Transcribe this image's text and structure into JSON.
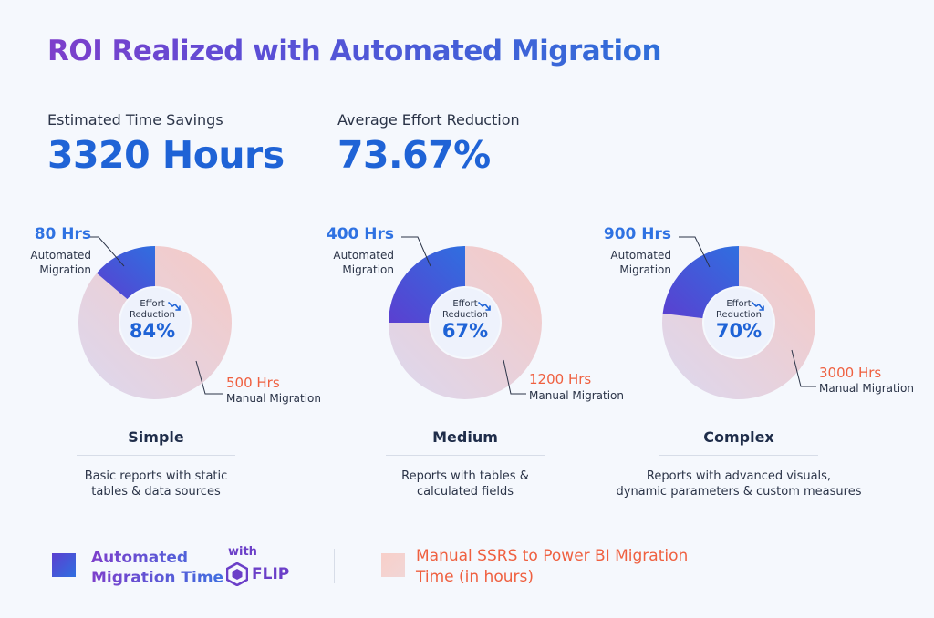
{
  "title": "ROI Realized with Automated Migration",
  "kpis": {
    "time_savings_label": "Estimated Time Savings",
    "time_savings_value": "3320 Hours",
    "effort_label": "Average Effort Reduction",
    "effort_value": "73.67%"
  },
  "colors": {
    "automated_dark": "#3a5fdc",
    "automated_light": "#5b3fd0",
    "manual_pink": "#f6c9c4",
    "manual_lavender": "#dfd9ef",
    "accent_blue": "#1f63d6",
    "accent_orange": "#ef6040"
  },
  "chart_data": [
    {
      "type": "pie",
      "category": "Simple",
      "description_line1": "Basic reports with static",
      "description_line2": "tables & data sources",
      "slices": [
        {
          "name": "Automated Migration",
          "hours_label": "80 Hrs",
          "value": 80
        },
        {
          "name": "Manual Migration",
          "hours_label": "500 Hrs",
          "value": 500
        }
      ],
      "effort_label_line1": "Effort",
      "effort_label_line2": "Reduction",
      "effort_reduction": "84%"
    },
    {
      "type": "pie",
      "category": "Medium",
      "description_line1": "Reports with tables &",
      "description_line2": "calculated fields",
      "slices": [
        {
          "name": "Automated Migration",
          "hours_label": "400 Hrs",
          "value": 400
        },
        {
          "name": "Manual Migration",
          "hours_label": "1200 Hrs",
          "value": 1200
        }
      ],
      "effort_label_line1": "Effort",
      "effort_label_line2": "Reduction",
      "effort_reduction": "67%"
    },
    {
      "type": "pie",
      "category": "Complex",
      "description_line1": "Reports with advanced visuals,",
      "description_line2": "dynamic parameters & custom measures",
      "slices": [
        {
          "name": "Automated Migration",
          "hours_label": "900 Hrs",
          "value": 900
        },
        {
          "name": "Manual Migration",
          "hours_label": "3000 Hrs",
          "value": 3000
        }
      ],
      "effort_label_line1": "Effort",
      "effort_label_line2": "Reduction",
      "effort_reduction": "70%"
    }
  ],
  "annotation_words": {
    "automated_line1": "Automated",
    "automated_line2": "Migration",
    "manual": "Manual Migration"
  },
  "legend": {
    "automated_line1": "Automated",
    "automated_line2": "Migration Time",
    "with": "with",
    "brand": "FLIP",
    "manual_line1": "Manual SSRS to Power BI Migration",
    "manual_line2": "Time (in hours)"
  }
}
